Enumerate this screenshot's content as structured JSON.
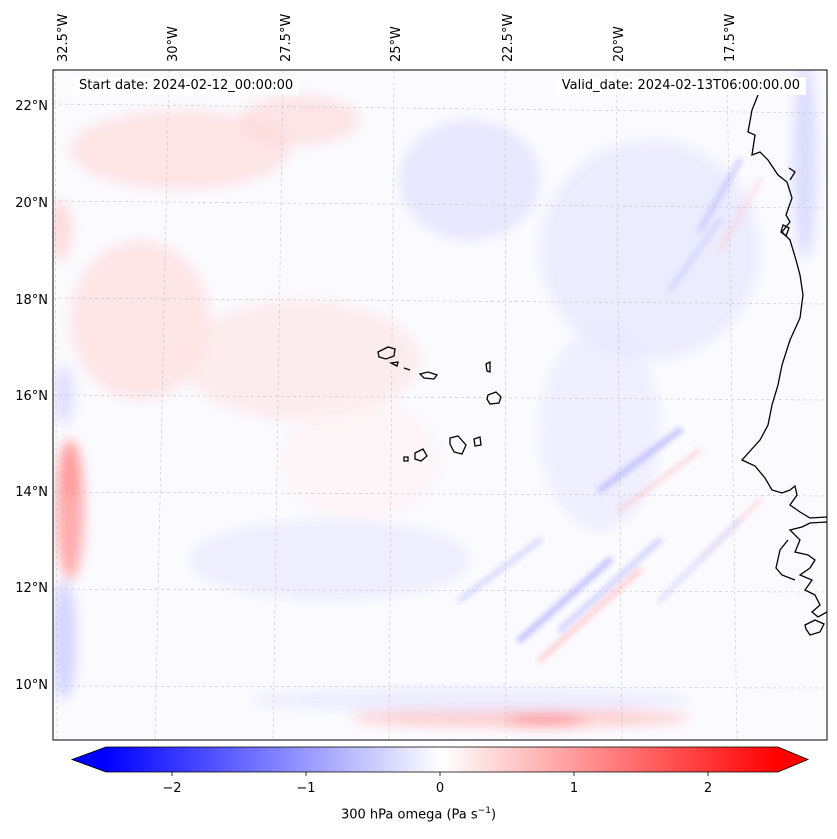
{
  "header": {
    "start_date": "Start date: 2024-02-12_00:00:00",
    "valid_date": "Valid_date: 2024-02-13T06:00:00.00"
  },
  "map": {
    "lon_labels": [
      "32.5°W",
      "30°W",
      "27.5°W",
      "25°W",
      "22.5°W",
      "20°W",
      "17.5°W"
    ],
    "lat_labels": [
      "22°N",
      "20°N",
      "18°N",
      "16°N",
      "14°N",
      "12°N",
      "10°N"
    ],
    "gridlines": true
  },
  "colorbar": {
    "label_main": "300 hPa omega (Pa s",
    "label_sup": "−1",
    "label_end": ")",
    "ticks": [
      "−2",
      "−1",
      "0",
      "1",
      "2"
    ],
    "range": [
      -2.6,
      2.6
    ],
    "colormap": "bwr",
    "color_low": "#0000ff",
    "color_mid": "#ffffff",
    "color_high": "#ff0000"
  }
}
